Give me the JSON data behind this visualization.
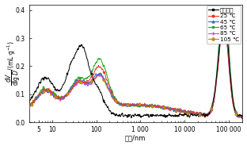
{
  "xlabel": "粒径/nm",
  "legend_labels": [
    "空白试样",
    "25 ℃",
    "45 ℃",
    "65 ℃",
    "85 ℃",
    "105 ℃"
  ],
  "colors": [
    "#000000",
    "#e8392a",
    "#4169c8",
    "#22aa22",
    "#bb55cc",
    "#cc8800"
  ],
  "markers": [
    "s",
    "o",
    "^",
    "s",
    "+",
    "D"
  ],
  "marker_sizes": [
    2.0,
    2.0,
    2.0,
    2.0,
    2.5,
    2.0
  ],
  "xlim": [
    3,
    200000
  ],
  "ylim": [
    0,
    0.42
  ],
  "yticks": [
    0,
    0.1,
    0.2,
    0.3,
    0.4
  ],
  "xtick_vals": [
    5,
    10,
    100,
    1000,
    10000,
    100000
  ],
  "xtick_labels": [
    "5",
    "10",
    "100",
    "1 000",
    "10 000",
    "100 000"
  ],
  "background": "#ffffff"
}
